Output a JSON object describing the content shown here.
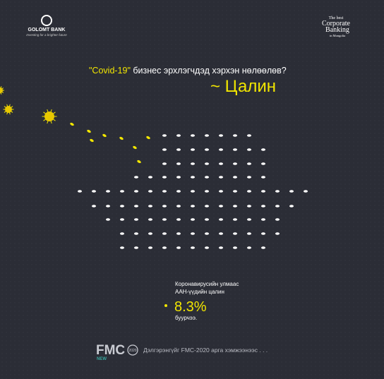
{
  "header": {
    "bank_name": "GOLOMT BANK",
    "bank_slogan": "Investing for a brighter future",
    "award": [
      "The best",
      "Corporate",
      "Banking",
      "in Mongolia"
    ]
  },
  "headline": {
    "highlight": "\"Covid-19\"",
    "rest": "бизнес эрхлэгчдэд хэрхэн нөлөөлөв?",
    "topic": "~ Цалин"
  },
  "stat": {
    "line1": "Коронавирусийн улмаас",
    "line2": "ААН-үүдийн цалин",
    "figure": "8.3%",
    "line3": "буурчээ."
  },
  "footer": {
    "logo": "FMC",
    "logo_year": "2020",
    "logo_tag": "NEW",
    "note": "Дэлгэрэнгүйг FMC-2020 арга хэмжээнээс . . ."
  }
}
